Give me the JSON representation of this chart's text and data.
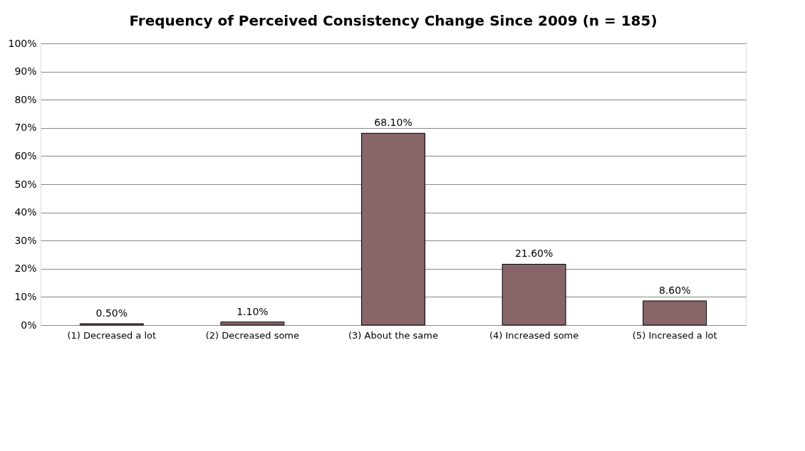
{
  "chart_data": {
    "type": "bar",
    "title": "Frequency of Perceived Consistency Change Since 2009 (n = 185)",
    "categories": [
      "(1) Decreased a lot",
      "(2) Decreased some",
      "(3) About the same",
      "(4) Increased some",
      "(5) Increased a lot"
    ],
    "values": [
      0.5,
      1.1,
      68.1,
      21.6,
      8.6
    ],
    "value_labels": [
      "0.50%",
      "1.10%",
      "68.10%",
      "21.60%",
      "8.60%"
    ],
    "color": "#886569",
    "ylim": [
      0,
      100
    ],
    "yticks": [
      {
        "value": 0,
        "label": "0%"
      },
      {
        "value": 10,
        "label": "10%"
      },
      {
        "value": 20,
        "label": "20%"
      },
      {
        "value": 30,
        "label": "30%"
      },
      {
        "value": 40,
        "label": "40%"
      },
      {
        "value": 50,
        "label": "50%"
      },
      {
        "value": 60,
        "label": "60%"
      },
      {
        "value": 70,
        "label": "70%"
      },
      {
        "value": 80,
        "label": "80%"
      },
      {
        "value": 90,
        "label": "90%"
      },
      {
        "value": 100,
        "label": "100%"
      }
    ],
    "grid": "y"
  }
}
